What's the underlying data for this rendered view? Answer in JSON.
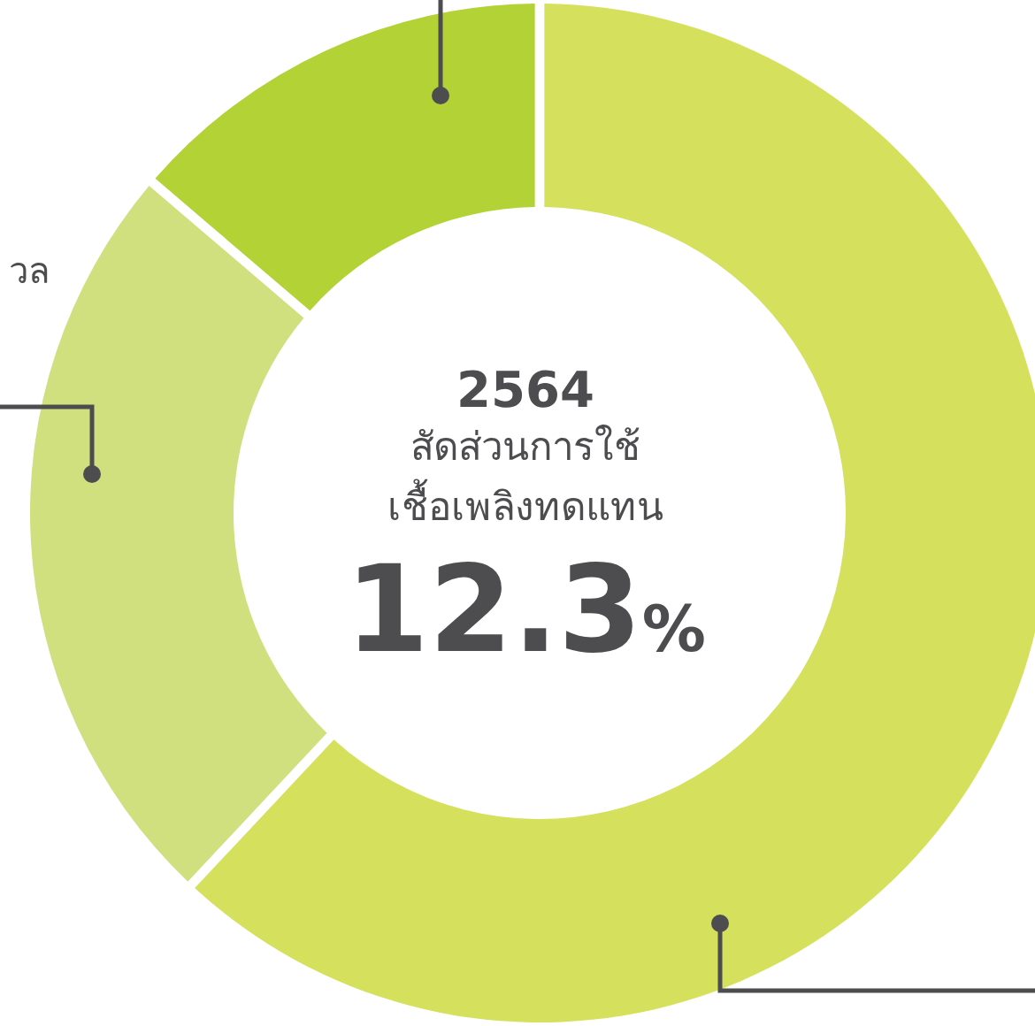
{
  "chart_data": {
    "type": "donut",
    "title": "2564",
    "subtitle": "สัดส่วนการใช้\nเชื้อเพลิงทดแทน",
    "categories": [
      null,
      "วล",
      null
    ],
    "values": [
      62.2,
      24.2,
      13.6
    ],
    "colors": [
      "#d5e15c",
      "#d0e07f",
      "#b3d236"
    ],
    "annotations": [
      "12.3%"
    ]
  }
}
